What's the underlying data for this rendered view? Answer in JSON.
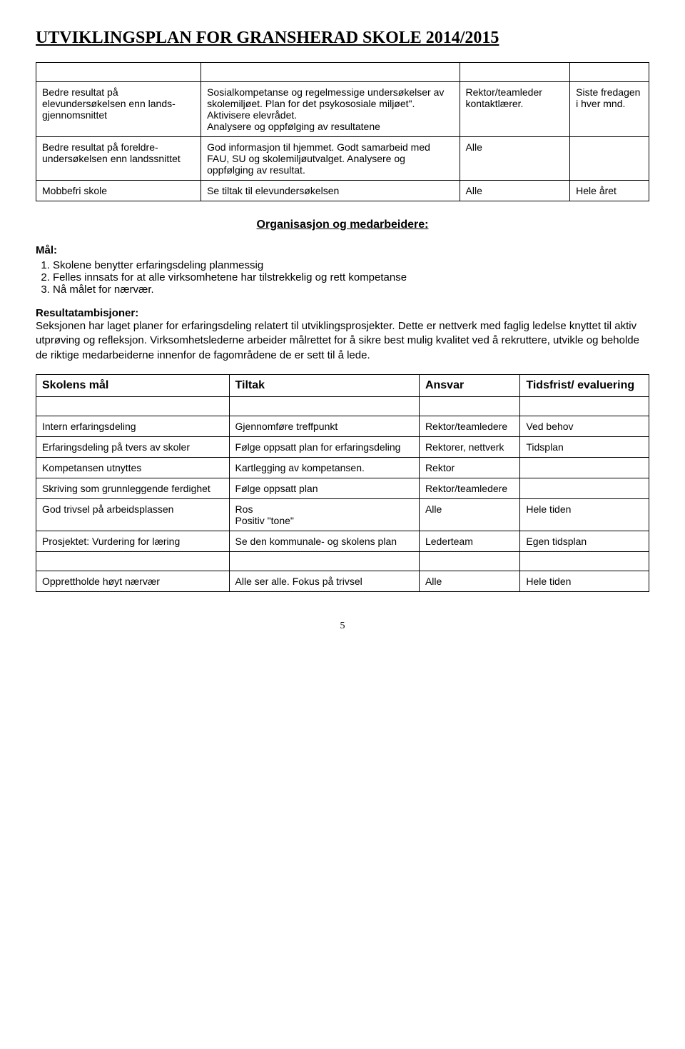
{
  "page_title": "UTVIKLINGSPLAN FOR GRANSHERAD SKOLE 2014/2015",
  "table1": {
    "rows": [
      {
        "c0": "Bedre resultat på elevundersøkelsen enn lands-gjennomsnittet",
        "c1": "Sosialkompetanse og regelmessige undersøkelser av skolemiljøet. Plan for det psykososiale miljøet\". Aktivisere elevrådet.\nAnalysere og oppfølging av resultatene",
        "c2": "Rektor/teamleder kontaktlærer.",
        "c3": "Siste fredagen i hver mnd."
      },
      {
        "c0": "Bedre resultat på foreldre-undersøkelsen enn landssnittet",
        "c1": "God informasjon til hjemmet. Godt samarbeid med FAU, SU og skolemiljøutvalget. Analysere og oppfølging av resultat.",
        "c2": "Alle",
        "c3": ""
      },
      {
        "c0": "Mobbefri skole",
        "c1": "Se tiltak til elevundersøkelsen",
        "c2": "Alle",
        "c3": "Hele året"
      }
    ]
  },
  "section_heading": "Organisasjon og medarbeidere:",
  "goals_label": "Mål:",
  "goals": [
    "Skolene benytter erfaringsdeling planmessig",
    "Felles innsats for at alle virksomhetene har tilstrekkelig og rett kompetanse",
    "Nå målet for nærvær."
  ],
  "ra_label": "Resultatambisjoner:",
  "ra_text": "Seksjonen har laget planer for erfaringsdeling relatert til utviklingsprosjekter. Dette er nettverk med faglig ledelse knyttet til aktiv utprøving og refleksjon. Virksomhetslederne arbeider målrettet for å sikre best mulig kvalitet ved å rekruttere, utvikle og beholde de riktige medarbeiderne innenfor de fagområdene de er sett til å lede.",
  "table2": {
    "headers": [
      "Skolens mål",
      "Tiltak",
      "Ansvar",
      "Tidsfrist/ evaluering"
    ],
    "rows": [
      {
        "c0": "Intern erfaringsdeling",
        "c1": "Gjennomføre treffpunkt",
        "c2": "Rektor/teamledere",
        "c3": "Ved behov"
      },
      {
        "c0": "Erfaringsdeling på tvers av skoler",
        "c1": "Følge oppsatt plan for erfaringsdeling",
        "c2": "Rektorer, nettverk",
        "c3": "Tidsplan"
      },
      {
        "c0": "Kompetansen utnyttes",
        "c1": "Kartlegging av kompetansen.",
        "c2": "Rektor",
        "c3": ""
      },
      {
        "c0": "Skriving som grunnleggende ferdighet",
        "c1": "Følge oppsatt plan",
        "c2": "Rektor/teamledere",
        "c3": ""
      },
      {
        "c0": "God trivsel på arbeidsplassen",
        "c1": "Ros\nPositiv \"tone\"",
        "c2": "Alle",
        "c3": "Hele tiden"
      },
      {
        "c0": "Prosjektet: Vurdering for læring",
        "c1": "Se den kommunale- og skolens plan",
        "c2": "Lederteam",
        "c3": "Egen tidsplan"
      },
      {
        "c0": "Opprettholde høyt nærvær",
        "c1": "Alle ser alle. Fokus på trivsel",
        "c2": "Alle",
        "c3": "Hele tiden"
      }
    ]
  },
  "page_number": "5",
  "colors": {
    "border": "#000000",
    "text": "#000000",
    "background": "#ffffff"
  }
}
